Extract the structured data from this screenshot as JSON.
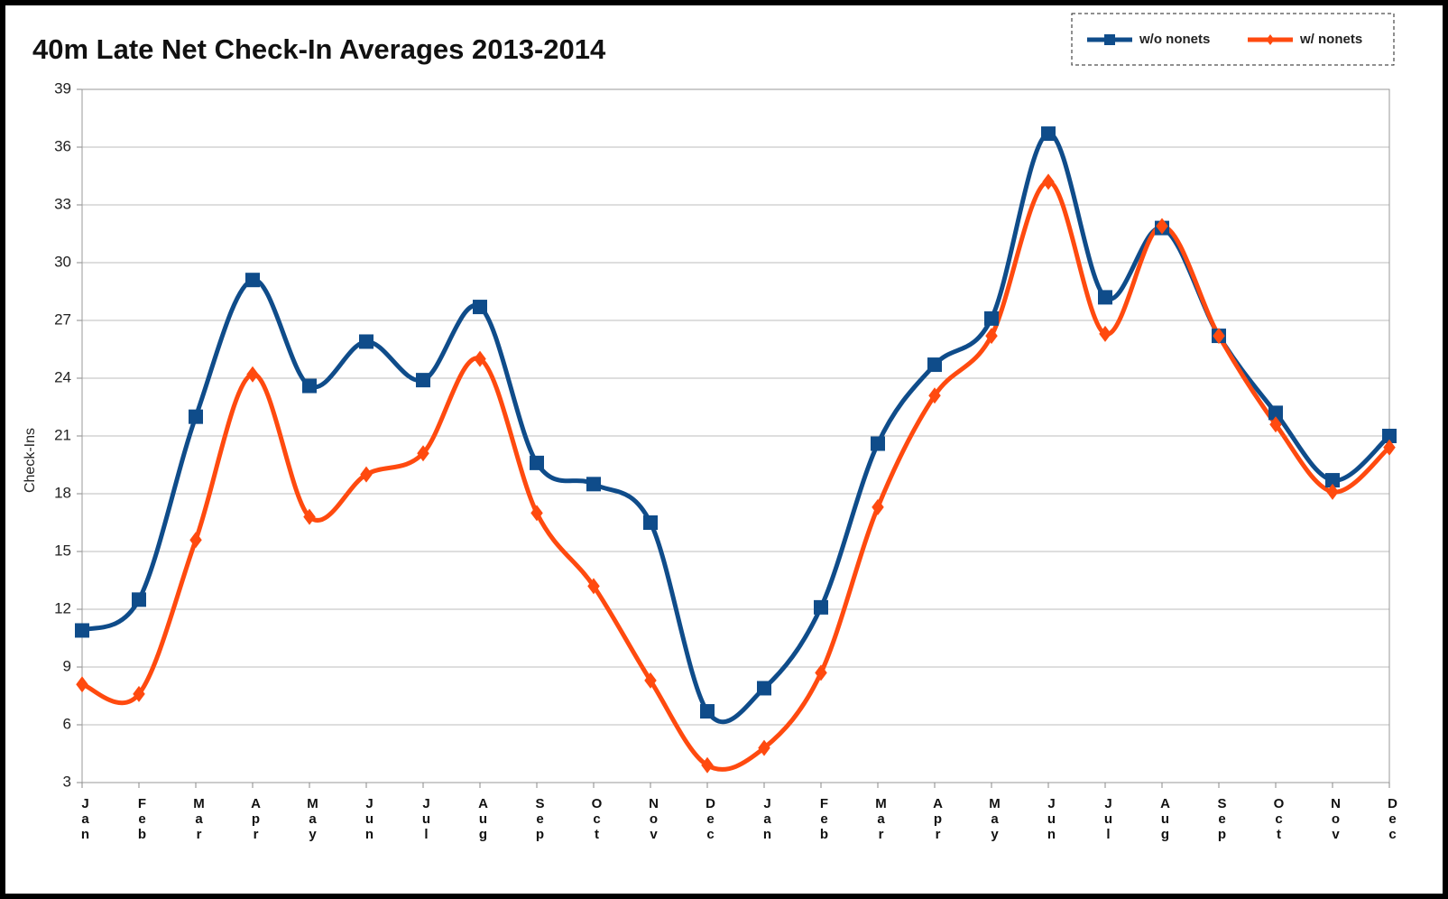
{
  "chart_data": {
    "type": "line",
    "title": "40m Late Net Check-In Averages 2013-2014",
    "y_label": "Check-Ins",
    "categories": [
      "Jan",
      "Feb",
      "Mar",
      "Apr",
      "May",
      "Jun",
      "Jul",
      "Aug",
      "Sep",
      "Oct",
      "Nov",
      "Dec",
      "Jan",
      "Feb",
      "Mar",
      "Apr",
      "May",
      "Jun",
      "Jul",
      "Aug",
      "Sep",
      "Oct",
      "Nov",
      "Dec"
    ],
    "series": [
      {
        "name": "w/o nonets",
        "color": "#0f4c8a",
        "marker": "square",
        "values": [
          10.9,
          12.5,
          22.0,
          29.1,
          23.6,
          25.9,
          23.9,
          27.7,
          19.6,
          18.5,
          16.5,
          6.7,
          7.9,
          12.1,
          20.6,
          24.7,
          27.1,
          36.7,
          28.2,
          31.8,
          26.2,
          22.2,
          18.7,
          21.0
        ]
      },
      {
        "name": "w/ nonets",
        "color": "#ff4a0f",
        "marker": "diamond",
        "values": [
          8.1,
          7.6,
          15.6,
          24.2,
          16.8,
          19.0,
          20.1,
          25.0,
          17.0,
          13.2,
          8.3,
          3.9,
          4.8,
          8.7,
          17.3,
          23.1,
          26.2,
          34.2,
          26.3,
          31.9,
          26.2,
          21.6,
          18.1,
          20.4
        ]
      }
    ],
    "ylim": [
      3,
      39
    ],
    "yticks": [
      3,
      6,
      9,
      12,
      15,
      18,
      21,
      24,
      27,
      30,
      33,
      36,
      39
    ],
    "grid": true,
    "legend": "top-right",
    "smooth": true
  }
}
